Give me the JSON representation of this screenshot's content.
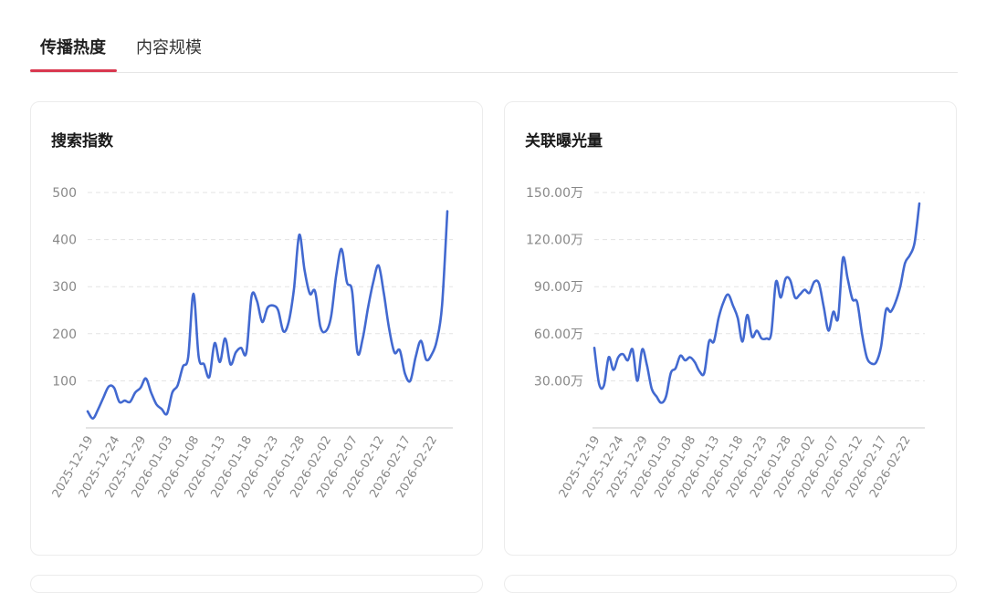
{
  "tabs": {
    "active_label": "传播热度",
    "inactive_label": "内容规模"
  },
  "colors": {
    "accent": "#d9384f",
    "line": "#4269d0",
    "grid": "#e3e3e3",
    "axis": "#c8c8c8"
  },
  "chart_data": [
    {
      "type": "line",
      "title": "搜索指数",
      "xlabel": "",
      "ylabel": "",
      "ylim": [
        0,
        500
      ],
      "yticks": [
        100,
        200,
        300,
        400,
        500
      ],
      "ytick_labels": [
        "100",
        "200",
        "300",
        "400",
        "500"
      ],
      "grid": true,
      "x_tick_labels": [
        "2025-12-19",
        "2025-12-24",
        "2025-12-29",
        "2026-01-03",
        "2026-01-08",
        "2026-01-13",
        "2026-01-18",
        "2026-01-23",
        "2026-01-28",
        "2026-02-02",
        "2026-02-07",
        "2026-02-12",
        "2026-02-17",
        "2026-02-22"
      ],
      "x": [
        "2025-12-19",
        "2025-12-20",
        "2025-12-21",
        "2025-12-22",
        "2025-12-23",
        "2025-12-24",
        "2025-12-25",
        "2025-12-26",
        "2025-12-27",
        "2025-12-28",
        "2025-12-29",
        "2025-12-30",
        "2025-12-31",
        "2026-01-01",
        "2026-01-02",
        "2026-01-03",
        "2026-01-04",
        "2026-01-05",
        "2026-01-06",
        "2026-01-07",
        "2026-01-08",
        "2026-01-09",
        "2026-01-10",
        "2026-01-11",
        "2026-01-12",
        "2026-01-13",
        "2026-01-14",
        "2026-01-15",
        "2026-01-16",
        "2026-01-17",
        "2026-01-18",
        "2026-01-19",
        "2026-01-20",
        "2026-01-21",
        "2026-01-22",
        "2026-01-23",
        "2026-01-24",
        "2026-01-25",
        "2026-01-26",
        "2026-01-27",
        "2026-01-28",
        "2026-01-29",
        "2026-01-30",
        "2026-01-31",
        "2026-02-01",
        "2026-02-02",
        "2026-02-03",
        "2026-02-04",
        "2026-02-05",
        "2026-02-06",
        "2026-02-07",
        "2026-02-08",
        "2026-02-09",
        "2026-02-10",
        "2026-02-11",
        "2026-02-12",
        "2026-02-13",
        "2026-02-14",
        "2026-02-15",
        "2026-02-16",
        "2026-02-17",
        "2026-02-18",
        "2026-02-19",
        "2026-02-20",
        "2026-02-21",
        "2026-02-22",
        "2026-02-23",
        "2026-02-24",
        "2026-02-25"
      ],
      "series": [
        {
          "values": [
            35,
            20,
            40,
            65,
            88,
            85,
            55,
            58,
            55,
            75,
            85,
            105,
            75,
            50,
            40,
            30,
            75,
            90,
            130,
            150,
            285,
            150,
            135,
            108,
            180,
            140,
            190,
            135,
            160,
            170,
            160,
            280,
            270,
            225,
            255,
            260,
            250,
            205,
            225,
            295,
            410,
            335,
            285,
            290,
            215,
            205,
            235,
            325,
            380,
            310,
            290,
            160,
            190,
            255,
            310,
            345,
            285,
            210,
            160,
            165,
            115,
            100,
            150,
            185,
            145,
            155,
            185,
            260,
            460
          ]
        }
      ]
    },
    {
      "type": "line",
      "title": "关联曝光量",
      "xlabel": "",
      "ylabel": "",
      "ylim": [
        0,
        150
      ],
      "yticks": [
        30,
        60,
        90,
        120,
        150
      ],
      "ytick_labels": [
        "30.00万",
        "60.00万",
        "90.00万",
        "120.00万",
        "150.00万"
      ],
      "grid": true,
      "x_tick_labels": [
        "2025-12-19",
        "2025-12-24",
        "2025-12-29",
        "2026-01-03",
        "2026-01-08",
        "2026-01-13",
        "2026-01-18",
        "2026-01-23",
        "2026-01-28",
        "2026-02-02",
        "2026-02-07",
        "2026-02-12",
        "2026-02-17",
        "2026-02-22"
      ],
      "x": [
        "2025-12-19",
        "2025-12-20",
        "2025-12-21",
        "2025-12-22",
        "2025-12-23",
        "2025-12-24",
        "2025-12-25",
        "2025-12-26",
        "2025-12-27",
        "2025-12-28",
        "2025-12-29",
        "2025-12-30",
        "2025-12-31",
        "2026-01-01",
        "2026-01-02",
        "2026-01-03",
        "2026-01-04",
        "2026-01-05",
        "2026-01-06",
        "2026-01-07",
        "2026-01-08",
        "2026-01-09",
        "2026-01-10",
        "2026-01-11",
        "2026-01-12",
        "2026-01-13",
        "2026-01-14",
        "2026-01-15",
        "2026-01-16",
        "2026-01-17",
        "2026-01-18",
        "2026-01-19",
        "2026-01-20",
        "2026-01-21",
        "2026-01-22",
        "2026-01-23",
        "2026-01-24",
        "2026-01-25",
        "2026-01-26",
        "2026-01-27",
        "2026-01-28",
        "2026-01-29",
        "2026-01-30",
        "2026-01-31",
        "2026-02-01",
        "2026-02-02",
        "2026-02-03",
        "2026-02-04",
        "2026-02-05",
        "2026-02-06",
        "2026-02-07",
        "2026-02-08",
        "2026-02-09",
        "2026-02-10",
        "2026-02-11",
        "2026-02-12",
        "2026-02-13",
        "2026-02-14",
        "2026-02-15",
        "2026-02-16",
        "2026-02-17",
        "2026-02-18",
        "2026-02-19",
        "2026-02-20",
        "2026-02-21",
        "2026-02-22",
        "2026-02-23",
        "2026-02-24",
        "2026-02-25"
      ],
      "series": [
        {
          "values": [
            51,
            28,
            27,
            45,
            37,
            45,
            47,
            43,
            50,
            30,
            50,
            40,
            25,
            20,
            16,
            20,
            35,
            38,
            46,
            43,
            45,
            42,
            36,
            35,
            55,
            55,
            70,
            80,
            85,
            78,
            70,
            55,
            72,
            58,
            62,
            57,
            57,
            60,
            93,
            83,
            95,
            94,
            83,
            85,
            88,
            86,
            93,
            92,
            77,
            62,
            74,
            70,
            108,
            95,
            82,
            80,
            60,
            45,
            41,
            42,
            52,
            75,
            74,
            80,
            90,
            105,
            110,
            118,
            143
          ]
        }
      ]
    }
  ]
}
